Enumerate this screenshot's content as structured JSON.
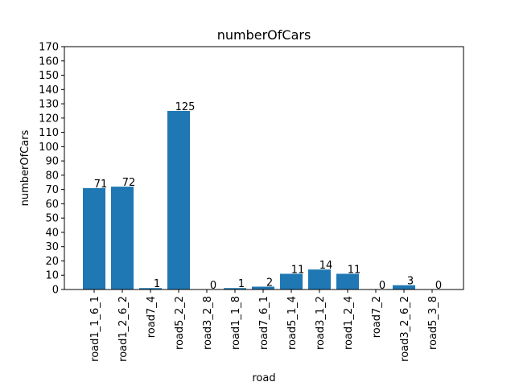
{
  "chart_data": {
    "type": "bar",
    "title": "numberOfCars",
    "xlabel": "road",
    "ylabel": "numberOfCars",
    "categories": [
      "road1_1_6_1",
      "road1_2_6_2",
      "road7_4",
      "road5_2_2",
      "road3_2_8",
      "road1_1_8",
      "road7_6_1",
      "road5_1_4",
      "road3_1_2",
      "road1_2_4",
      "road7_2",
      "road3_2_6_2",
      "road5_3_8"
    ],
    "values": [
      71,
      72,
      1,
      125,
      0,
      1,
      2,
      11,
      14,
      11,
      0,
      3,
      0
    ],
    "ylim": [
      0,
      170
    ],
    "yticks": [
      0,
      10,
      20,
      30,
      40,
      50,
      60,
      70,
      80,
      90,
      100,
      110,
      120,
      130,
      140,
      150,
      160,
      170
    ],
    "bar_color": "#1f77b4",
    "grid": false,
    "legend": "none"
  }
}
